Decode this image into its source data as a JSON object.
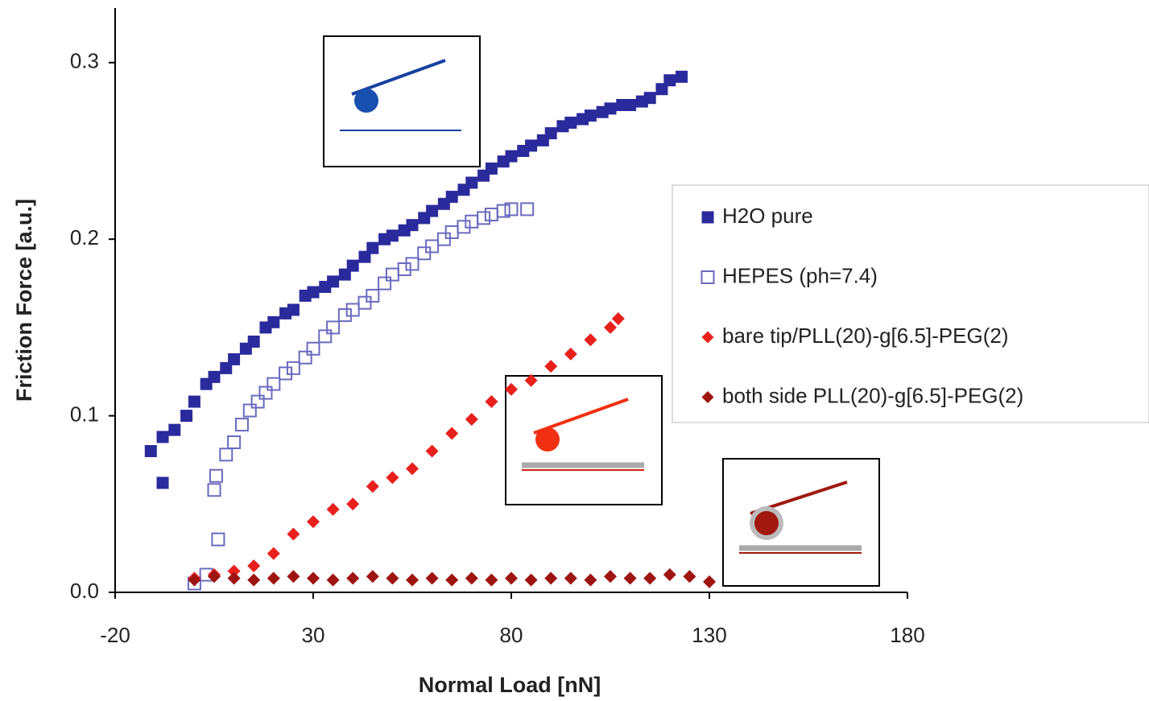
{
  "chart_data": {
    "type": "scatter",
    "xlabel": "Normal Load [nN]",
    "ylabel": "Friction Force [a.u.]",
    "xlim": [
      -20,
      180
    ],
    "ylim": [
      0,
      0.33
    ],
    "xticks": [
      -20,
      30,
      80,
      130,
      180
    ],
    "yticks": [
      {
        "value": 0,
        "label": "0.0"
      },
      0.1,
      0.2,
      0.3
    ],
    "series": [
      {
        "name": "H2O pure",
        "color": "#2a2a9c",
        "marker": "square",
        "x": [
          -11,
          -8,
          -8,
          -5,
          -2,
          0,
          3,
          5,
          8,
          10,
          13,
          15,
          18,
          20,
          23,
          25,
          28,
          30,
          33,
          35,
          38,
          40,
          43,
          45,
          48,
          50,
          53,
          55,
          58,
          60,
          63,
          65,
          68,
          70,
          73,
          75,
          78,
          80,
          83,
          85,
          88,
          90,
          93,
          95,
          98,
          100,
          103,
          105,
          108,
          110,
          113,
          115,
          118,
          120,
          123
        ],
        "values": [
          0.08,
          0.062,
          0.088,
          0.092,
          0.1,
          0.108,
          0.118,
          0.122,
          0.127,
          0.132,
          0.138,
          0.142,
          0.15,
          0.153,
          0.158,
          0.16,
          0.168,
          0.17,
          0.173,
          0.176,
          0.18,
          0.185,
          0.19,
          0.195,
          0.2,
          0.202,
          0.205,
          0.208,
          0.212,
          0.216,
          0.22,
          0.224,
          0.228,
          0.232,
          0.236,
          0.24,
          0.244,
          0.247,
          0.25,
          0.253,
          0.256,
          0.26,
          0.264,
          0.266,
          0.268,
          0.27,
          0.272,
          0.274,
          0.276,
          0.276,
          0.278,
          0.28,
          0.285,
          0.29,
          0.292
        ]
      },
      {
        "name": "HEPES (ph=7.4)",
        "color": "#6a6ac0",
        "marker": "open-square",
        "x": [
          0,
          3,
          5,
          5.5,
          6,
          8,
          10,
          12,
          14,
          16,
          18,
          20,
          23,
          25,
          28,
          30,
          33,
          35,
          38,
          40,
          43,
          45,
          48,
          50,
          53,
          55,
          58,
          60,
          63,
          65,
          68,
          70,
          73,
          75,
          78,
          80,
          84
        ],
        "values": [
          0.005,
          0.01,
          0.058,
          0.066,
          0.03,
          0.078,
          0.085,
          0.095,
          0.103,
          0.108,
          0.113,
          0.118,
          0.124,
          0.127,
          0.133,
          0.138,
          0.145,
          0.15,
          0.157,
          0.16,
          0.164,
          0.168,
          0.175,
          0.18,
          0.183,
          0.186,
          0.192,
          0.196,
          0.2,
          0.204,
          0.207,
          0.21,
          0.212,
          0.214,
          0.216,
          0.217,
          0.217
        ]
      },
      {
        "name": "bare tip/PLL(20)-g[6.5]-PEG(2)",
        "color": "#e8201c",
        "marker": "diamond",
        "x": [
          0,
          5,
          10,
          15,
          20,
          25,
          30,
          35,
          40,
          45,
          50,
          55,
          60,
          65,
          70,
          75,
          80,
          85,
          90,
          95,
          100,
          105,
          107
        ],
        "values": [
          0.008,
          0.01,
          0.012,
          0.015,
          0.022,
          0.033,
          0.04,
          0.047,
          0.05,
          0.06,
          0.065,
          0.07,
          0.08,
          0.09,
          0.098,
          0.108,
          0.115,
          0.12,
          0.128,
          0.135,
          0.143,
          0.15,
          0.155
        ]
      },
      {
        "name": "both side PLL(20)-g[6.5]-PEG(2)",
        "color": "#9e1410",
        "marker": "diamond",
        "x": [
          0,
          5,
          10,
          15,
          20,
          25,
          30,
          35,
          40,
          45,
          50,
          55,
          60,
          65,
          70,
          75,
          80,
          85,
          90,
          95,
          100,
          105,
          110,
          115,
          120,
          125,
          130
        ],
        "values": [
          0.007,
          0.009,
          0.008,
          0.007,
          0.008,
          0.009,
          0.008,
          0.007,
          0.008,
          0.009,
          0.008,
          0.007,
          0.008,
          0.007,
          0.008,
          0.007,
          0.008,
          0.007,
          0.008,
          0.008,
          0.007,
          0.009,
          0.008,
          0.008,
          0.01,
          0.009,
          0.006
        ]
      }
    ]
  }
}
